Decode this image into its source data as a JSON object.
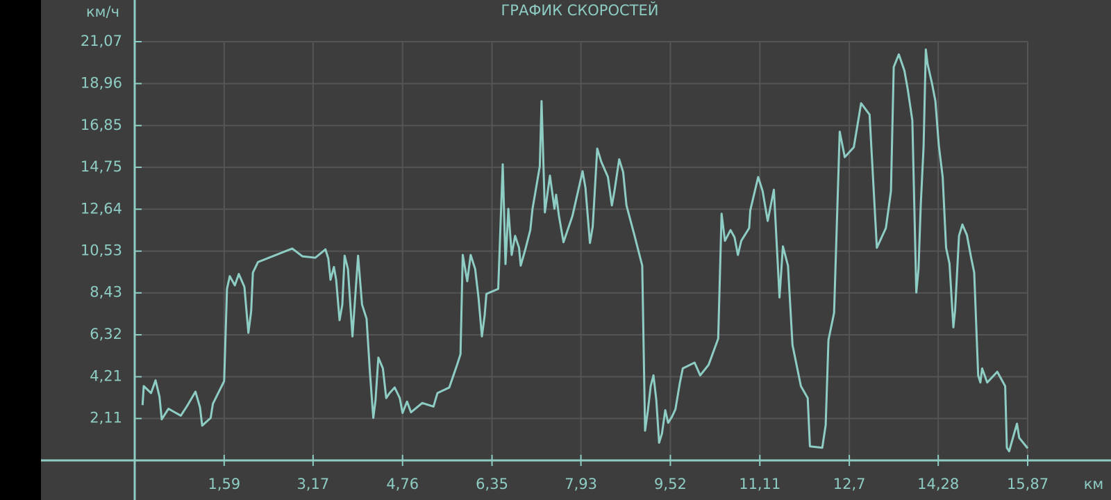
{
  "chart_data": {
    "type": "line",
    "title": "ГРАФИК СКОРОСТЕЙ",
    "x_label": "км",
    "y_label": "км/ч",
    "color": "#8ecdc4",
    "grid": true,
    "xlim": [
      0,
      15.87
    ],
    "ylim": [
      0,
      21.07
    ],
    "xticks": [
      {
        "value": 1.59,
        "label": "1,59"
      },
      {
        "value": 3.17,
        "label": "3,17"
      },
      {
        "value": 4.76,
        "label": "4,76"
      },
      {
        "value": 6.35,
        "label": "6,35"
      },
      {
        "value": 7.93,
        "label": "7,93"
      },
      {
        "value": 9.52,
        "label": "9,52"
      },
      {
        "value": 11.11,
        "label": "11,11"
      },
      {
        "value": 12.7,
        "label": "12,7"
      },
      {
        "value": 14.28,
        "label": "14,28"
      },
      {
        "value": 15.87,
        "label": "15,87"
      }
    ],
    "yticks": [
      {
        "value": 2.11,
        "label": "2,11"
      },
      {
        "value": 4.21,
        "label": "4,21"
      },
      {
        "value": 6.32,
        "label": "6,32"
      },
      {
        "value": 8.43,
        "label": "8,43"
      },
      {
        "value": 10.53,
        "label": "10,53"
      },
      {
        "value": 12.64,
        "label": "12,64"
      },
      {
        "value": 14.75,
        "label": "14,75"
      },
      {
        "value": 16.85,
        "label": "16,85"
      },
      {
        "value": 18.96,
        "label": "18,96"
      },
      {
        "value": 21.07,
        "label": "21,07"
      }
    ],
    "x": [
      0.14,
      0.16,
      0.29,
      0.37,
      0.44,
      0.48,
      0.6,
      0.82,
      0.94,
      1.08,
      1.16,
      1.2,
      1.35,
      1.39,
      1.59,
      1.64,
      1.69,
      1.78,
      1.85,
      1.95,
      2.02,
      2.07,
      2.1,
      2.19,
      2.8,
      2.98,
      3.21,
      3.39,
      3.44,
      3.48,
      3.54,
      3.58,
      3.64,
      3.69,
      3.73,
      3.79,
      3.87,
      3.97,
      4.04,
      4.12,
      4.18,
      4.24,
      4.28,
      4.33,
      4.41,
      4.47,
      4.53,
      4.62,
      4.71,
      4.76,
      4.84,
      4.91,
      5.11,
      5.31,
      5.38,
      5.59,
      5.73,
      5.79,
      5.83,
      5.91,
      5.97,
      6.05,
      6.11,
      6.17,
      6.22,
      6.25,
      6.46,
      6.54,
      6.59,
      6.64,
      6.7,
      6.76,
      6.83,
      6.86,
      6.95,
      7.03,
      7.07,
      7.2,
      7.23,
      7.29,
      7.38,
      7.46,
      7.49,
      7.54,
      7.62,
      7.78,
      7.96,
      8.01,
      8.09,
      8.14,
      8.22,
      8.29,
      8.41,
      8.48,
      8.53,
      8.61,
      8.68,
      8.74,
      8.88,
      9.02,
      9.07,
      9.12,
      9.17,
      9.22,
      9.27,
      9.32,
      9.37,
      9.43,
      9.48,
      9.55,
      9.61,
      9.69,
      9.74,
      9.95,
      10.05,
      10.2,
      10.37,
      10.43,
      10.49,
      10.59,
      10.66,
      10.72,
      10.78,
      10.92,
      10.94,
      11.08,
      11.16,
      11.25,
      11.36,
      11.46,
      11.52,
      11.61,
      11.69,
      11.84,
      11.96,
      12.0,
      12.22,
      12.28,
      12.33,
      12.43,
      12.53,
      12.62,
      12.78,
      12.91,
      13.06,
      13.19,
      13.35,
      13.44,
      13.49,
      13.58,
      13.68,
      13.74,
      13.82,
      13.89,
      13.93,
      13.97,
      14.02,
      14.06,
      14.09,
      14.17,
      14.23,
      14.29,
      14.36,
      14.42,
      14.48,
      14.55,
      14.58,
      14.65,
      14.71,
      14.79,
      14.86,
      14.92,
      14.99,
      15.03,
      15.06,
      15.15,
      15.33,
      15.47,
      15.5,
      15.54,
      15.62,
      15.68,
      15.72,
      15.87
    ],
    "values": [
      2.78,
      3.74,
      3.39,
      4.03,
      3.21,
      2.07,
      2.6,
      2.25,
      2.78,
      3.46,
      2.67,
      1.75,
      2.14,
      2.85,
      3.99,
      8.63,
      9.27,
      8.81,
      9.38,
      8.73,
      6.42,
      7.49,
      9.45,
      9.98,
      10.66,
      10.27,
      10.2,
      10.62,
      10.16,
      9.09,
      9.73,
      9.09,
      7.06,
      7.84,
      10.3,
      9.63,
      6.24,
      10.3,
      7.84,
      7.13,
      4.46,
      2.14,
      3.03,
      5.17,
      4.63,
      3.14,
      3.39,
      3.67,
      3.14,
      2.39,
      2.96,
      2.42,
      2.89,
      2.71,
      3.39,
      3.67,
      4.81,
      5.35,
      10.34,
      9.02,
      10.34,
      9.63,
      8.2,
      6.24,
      7.31,
      8.38,
      8.63,
      14.9,
      9.88,
      12.66,
      10.34,
      11.3,
      10.7,
      9.8,
      10.7,
      11.59,
      12.66,
      14.8,
      18.08,
      12.48,
      14.33,
      12.66,
      13.37,
      12.3,
      10.98,
      12.3,
      14.55,
      13.73,
      10.94,
      11.76,
      15.69,
      15.04,
      14.26,
      12.83,
      13.62,
      15.15,
      14.51,
      12.83,
      11.34,
      9.8,
      1.5,
      2.5,
      3.74,
      4.28,
      3.03,
      0.89,
      1.35,
      2.53,
      1.89,
      2.21,
      2.57,
      3.92,
      4.63,
      4.92,
      4.28,
      4.81,
      6.13,
      12.41,
      11.05,
      11.59,
      11.23,
      10.34,
      11.05,
      11.69,
      12.58,
      14.26,
      13.55,
      12.05,
      13.62,
      8.2,
      10.77,
      9.8,
      5.81,
      3.74,
      3.14,
      0.71,
      0.64,
      1.78,
      6.06,
      7.42,
      16.54,
      15.26,
      15.76,
      17.97,
      17.4,
      10.7,
      11.69,
      13.55,
      19.79,
      20.43,
      19.61,
      18.65,
      17.11,
      8.45,
      9.63,
      12.83,
      15.79,
      20.68,
      19.96,
      18.97,
      18.08,
      15.86,
      14.26,
      10.7,
      9.91,
      6.7,
      7.56,
      11.3,
      11.87,
      11.34,
      10.27,
      9.45,
      4.28,
      3.92,
      4.63,
      3.92,
      4.46,
      3.74,
      0.64,
      0.46,
      1.25,
      1.85,
      1.14,
      0.61
    ]
  }
}
